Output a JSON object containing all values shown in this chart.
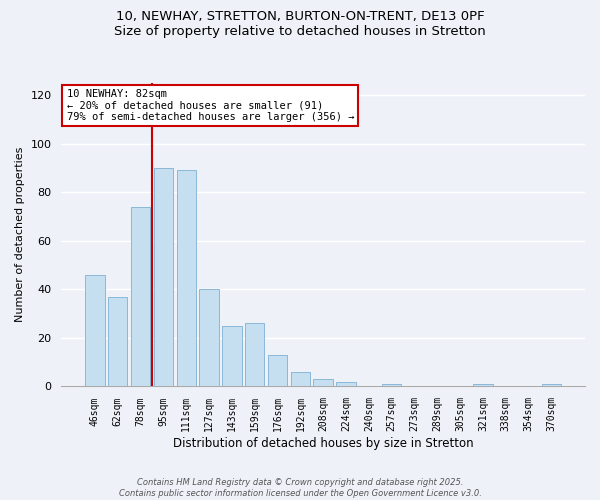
{
  "title": "10, NEWHAY, STRETTON, BURTON-ON-TRENT, DE13 0PF",
  "subtitle": "Size of property relative to detached houses in Stretton",
  "xlabel": "Distribution of detached houses by size in Stretton",
  "ylabel": "Number of detached properties",
  "bar_labels": [
    "46sqm",
    "62sqm",
    "78sqm",
    "95sqm",
    "111sqm",
    "127sqm",
    "143sqm",
    "159sqm",
    "176sqm",
    "192sqm",
    "208sqm",
    "224sqm",
    "240sqm",
    "257sqm",
    "273sqm",
    "289sqm",
    "305sqm",
    "321sqm",
    "338sqm",
    "354sqm",
    "370sqm"
  ],
  "bar_values": [
    46,
    37,
    74,
    90,
    89,
    40,
    25,
    26,
    13,
    6,
    3,
    2,
    0,
    1,
    0,
    0,
    0,
    1,
    0,
    0,
    1
  ],
  "bar_color": "#c6dff0",
  "bar_edge_color": "#8ab8d8",
  "vline_x_idx": 2,
  "vline_color": "#cc0000",
  "annotation_title": "10 NEWHAY: 82sqm",
  "annotation_line1": "← 20% of detached houses are smaller (91)",
  "annotation_line2": "79% of semi-detached houses are larger (356) →",
  "annotation_box_color": "#ffffff",
  "annotation_box_edge": "#cc0000",
  "ylim": [
    0,
    125
  ],
  "yticks": [
    0,
    20,
    40,
    60,
    80,
    100,
    120
  ],
  "footnote1": "Contains HM Land Registry data © Crown copyright and database right 2025.",
  "footnote2": "Contains public sector information licensed under the Open Government Licence v3.0.",
  "bg_color": "#eef2f8",
  "grid_color": "#ffffff",
  "title_fontsize": 9.5,
  "subtitle_fontsize": 8.5
}
